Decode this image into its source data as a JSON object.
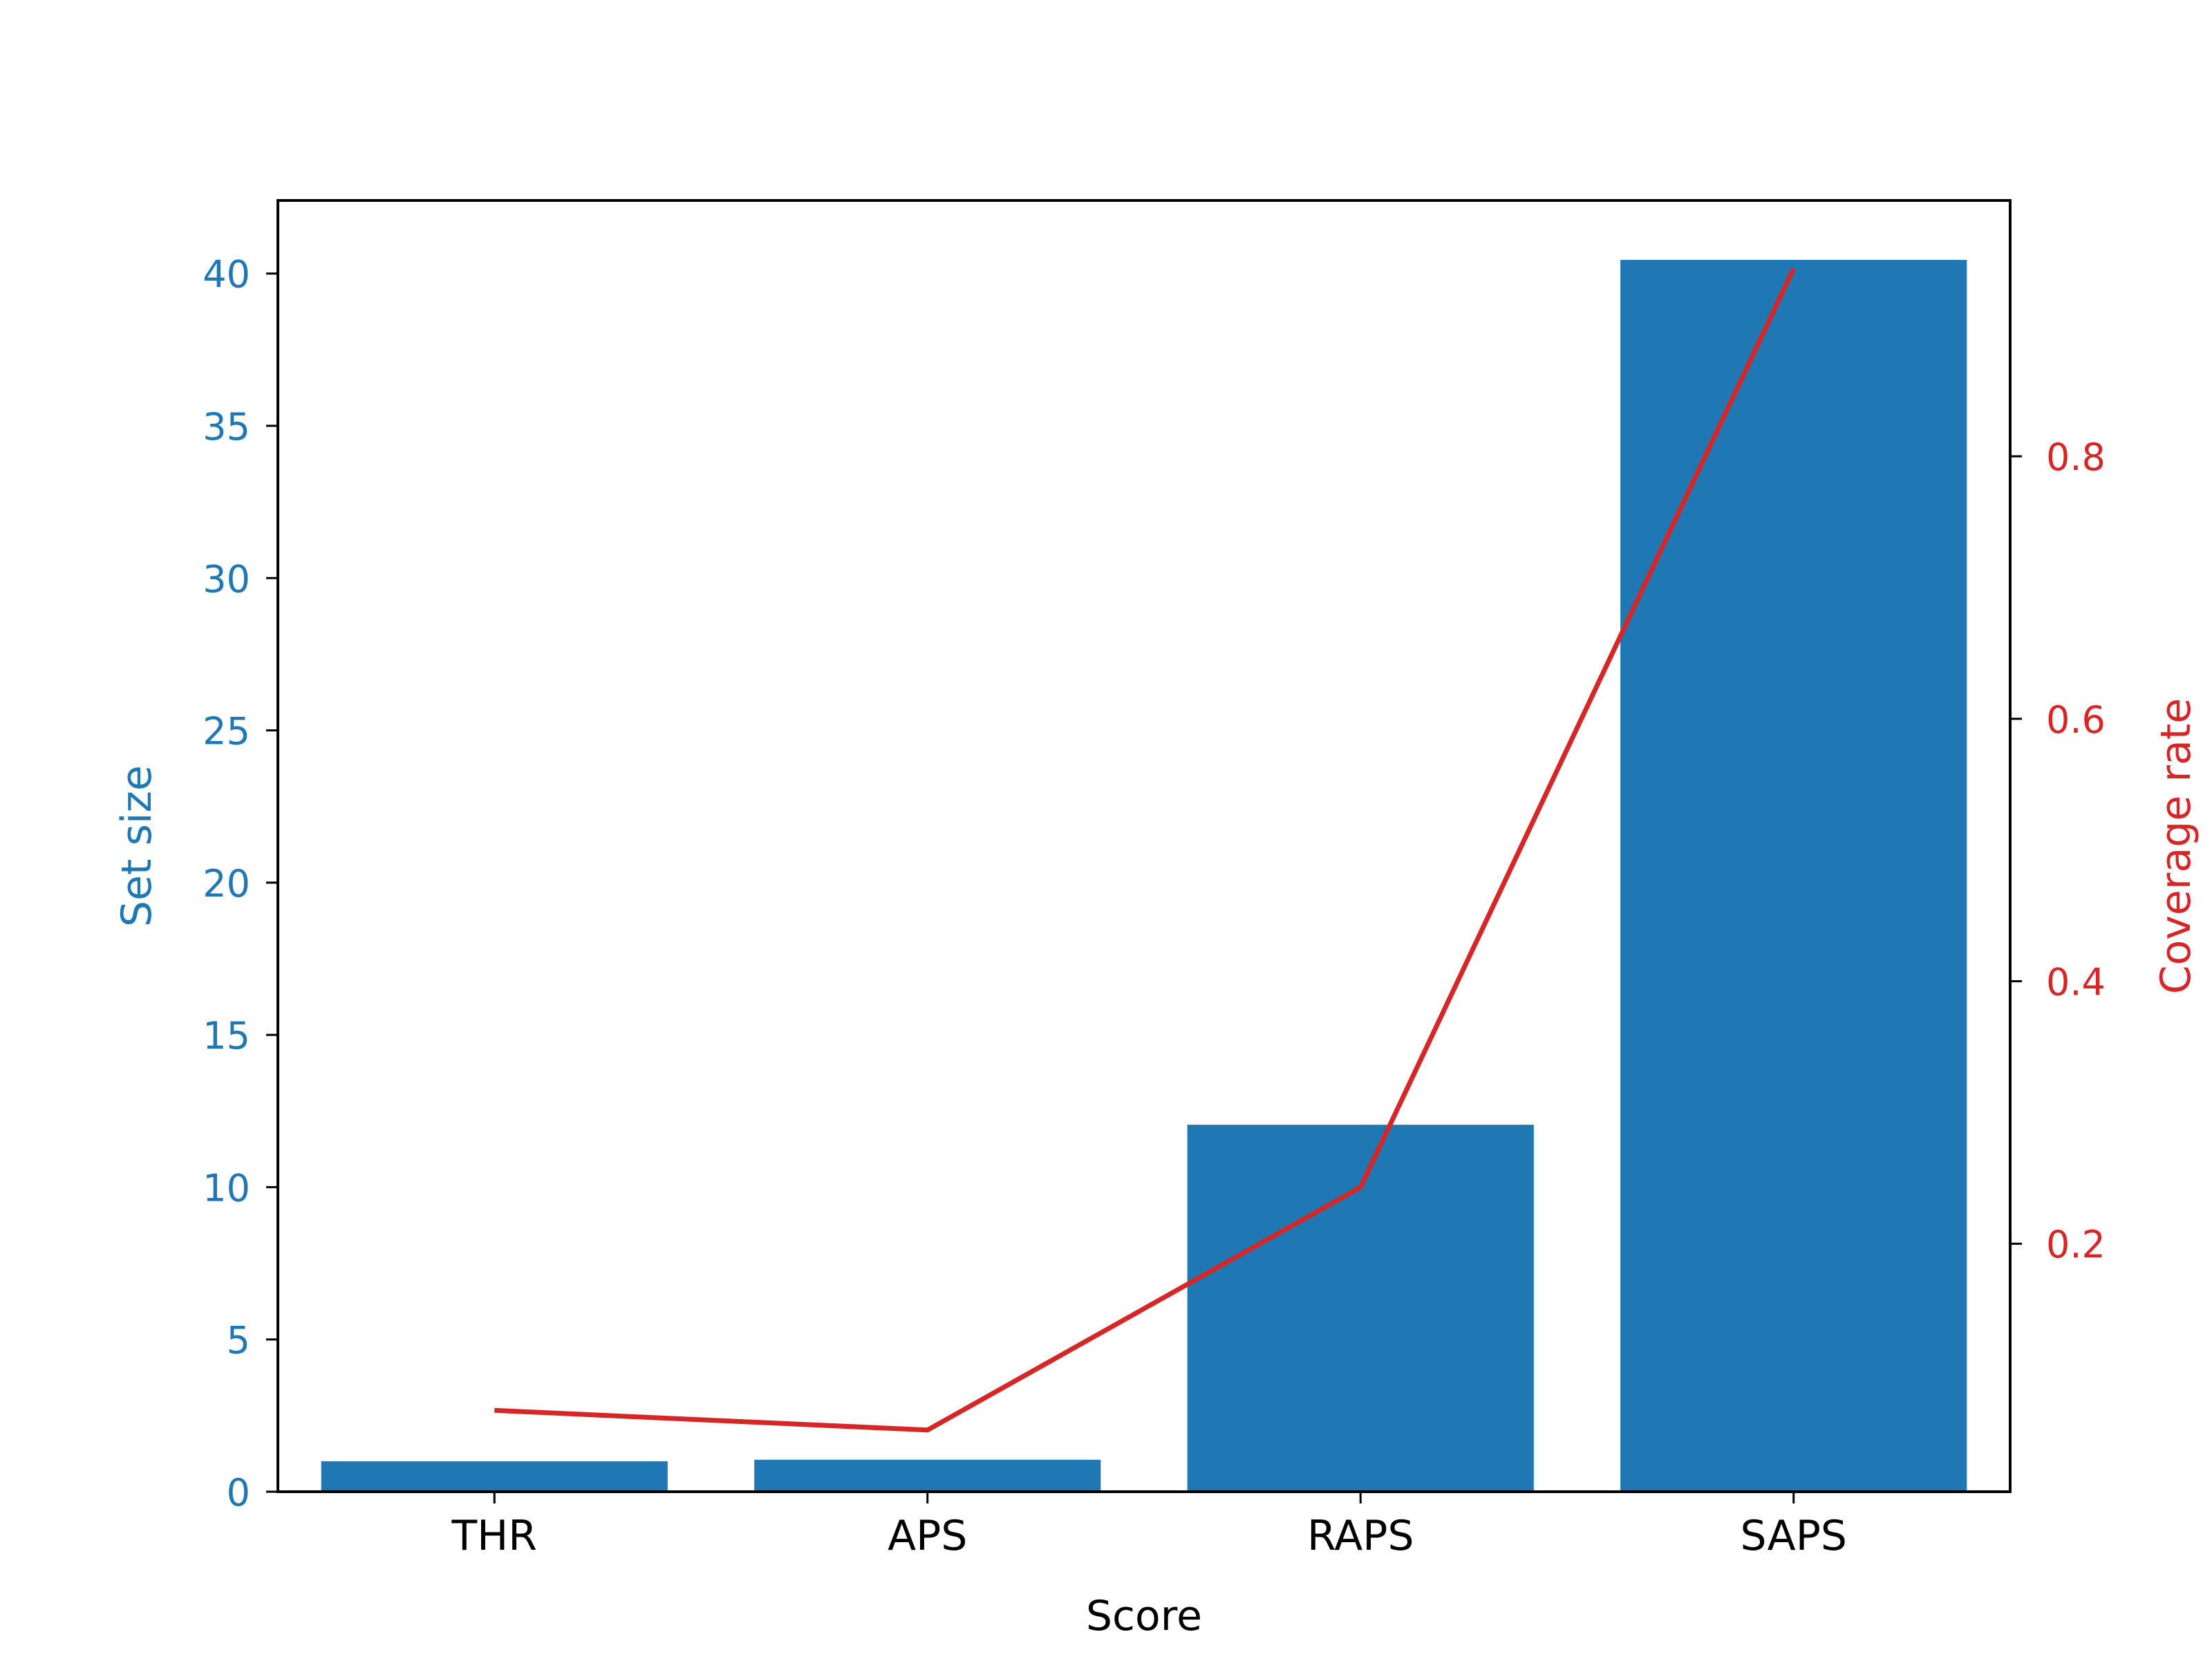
{
  "chart_data": {
    "type": "bar",
    "categories": [
      "THR",
      "APS",
      "RAPS",
      "SAPS"
    ],
    "xlabel": "Score",
    "series": [
      {
        "type": "bar",
        "axis": "left",
        "values": [
          1.0,
          1.05,
          12.05,
          40.45
        ]
      },
      {
        "type": "line",
        "axis": "right",
        "values": [
          0.073,
          0.058,
          0.243,
          0.943
        ]
      }
    ],
    "y_left": {
      "label": "Set size",
      "range": [
        0,
        42.4
      ],
      "ticks": [
        0,
        5,
        10,
        15,
        20,
        25,
        30,
        35,
        40
      ]
    },
    "y_right": {
      "label": "Coverage rate",
      "range": [
        0.011,
        0.995
      ],
      "ticks": [
        0.2,
        0.4,
        0.6,
        0.8
      ]
    },
    "grid": false,
    "colors": {
      "bar": "#1f77b4",
      "line": "#d62728",
      "left_axis_text": "#1f77b4",
      "right_axis_text": "#d62728",
      "frame": "#000000"
    }
  }
}
